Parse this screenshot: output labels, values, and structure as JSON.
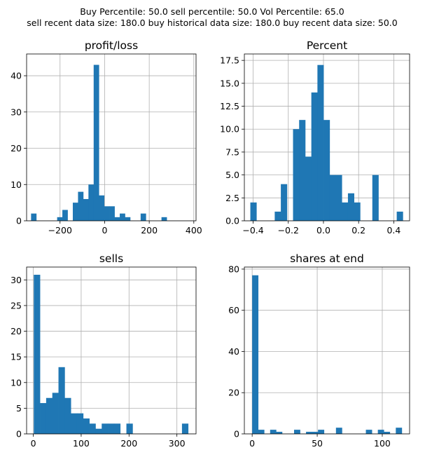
{
  "suptitle": {
    "line1": "Buy Percentile: 50.0 sell percentile: 50.0 Vol Percentile: 65.0",
    "line2": "sell recent data size: 180.0 buy historical data size: 180.0 buy recent data size: 50.0"
  },
  "colors": {
    "bar": "#1f77b4",
    "grid": "#b0b0b0",
    "axes": "#000000"
  },
  "chart_data": [
    {
      "type": "bar",
      "title": "profit/loss",
      "grid": true,
      "xlim": [
        -350,
        410
      ],
      "ylim": [
        0,
        46
      ],
      "xticks": [
        -200,
        0,
        200,
        400
      ],
      "xtick_labels": [
        "−200",
        "0",
        "200",
        "400"
      ],
      "yticks": [
        0,
        10,
        20,
        30,
        40
      ],
      "ytick_labels": [
        "0",
        "10",
        "20",
        "30",
        "40"
      ],
      "bins": {
        "start": -330,
        "width": 23.4,
        "counts": [
          2,
          0,
          0,
          0,
          0,
          1,
          3,
          0,
          5,
          8,
          6,
          10,
          43,
          7,
          4,
          4,
          1,
          2,
          1,
          0,
          0,
          2,
          0,
          0,
          0,
          1
        ]
      }
    },
    {
      "type": "bar",
      "title": "Percent",
      "grid": true,
      "xlim": [
        -0.45,
        0.49
      ],
      "ylim": [
        0,
        18.2
      ],
      "xticks": [
        -0.4,
        -0.2,
        0.0,
        0.2,
        0.4
      ],
      "xtick_labels": [
        "−0.4",
        "−0.2",
        "0.0",
        "0.2",
        "0.4"
      ],
      "yticks": [
        0,
        2.5,
        5.0,
        7.5,
        10.0,
        12.5,
        15.0,
        17.5
      ],
      "ytick_labels": [
        "0.0",
        "2.5",
        "5.0",
        "7.5",
        "10.0",
        "12.5",
        "15.0",
        "17.5"
      ],
      "bins": {
        "start": -0.416,
        "width": 0.0347,
        "counts": [
          2,
          0,
          0,
          0,
          1,
          4,
          0,
          10,
          11,
          7,
          14,
          17,
          11,
          5,
          5,
          2,
          3,
          2,
          0,
          0,
          5,
          0,
          0,
          0,
          1
        ]
      }
    },
    {
      "type": "bar",
      "title": "sells",
      "grid": true,
      "xlim": [
        -14,
        340
      ],
      "ylim": [
        0,
        32.5
      ],
      "xticks": [
        0,
        100,
        200,
        300
      ],
      "xtick_labels": [
        "0",
        "100",
        "200",
        "300"
      ],
      "yticks": [
        0,
        5,
        10,
        15,
        20,
        25,
        30
      ],
      "ytick_labels": [
        "0",
        "5",
        "10",
        "15",
        "20",
        "25",
        "30"
      ],
      "bins": {
        "start": 1,
        "width": 12.9,
        "counts": [
          31,
          6,
          7,
          8,
          13,
          7,
          4,
          4,
          3,
          2,
          1,
          2,
          2,
          2,
          0,
          2,
          0,
          0,
          0,
          0,
          0,
          0,
          0,
          0,
          2
        ]
      }
    },
    {
      "type": "bar",
      "title": "shares at end",
      "grid": true,
      "xlim": [
        -6,
        121
      ],
      "ylim": [
        0,
        81
      ],
      "xticks": [
        0,
        50,
        100
      ],
      "xtick_labels": [
        "0",
        "50",
        "100"
      ],
      "yticks": [
        0,
        20,
        40,
        60,
        80
      ],
      "ytick_labels": [
        "0",
        "20",
        "40",
        "60",
        "80"
      ],
      "bins": {
        "start": 0,
        "width": 4.6,
        "counts": [
          77,
          2,
          0,
          2,
          1,
          0,
          0,
          2,
          0,
          1,
          1,
          2,
          0,
          0,
          3,
          0,
          0,
          0,
          0,
          2,
          0,
          2,
          1,
          0,
          3
        ]
      }
    }
  ]
}
